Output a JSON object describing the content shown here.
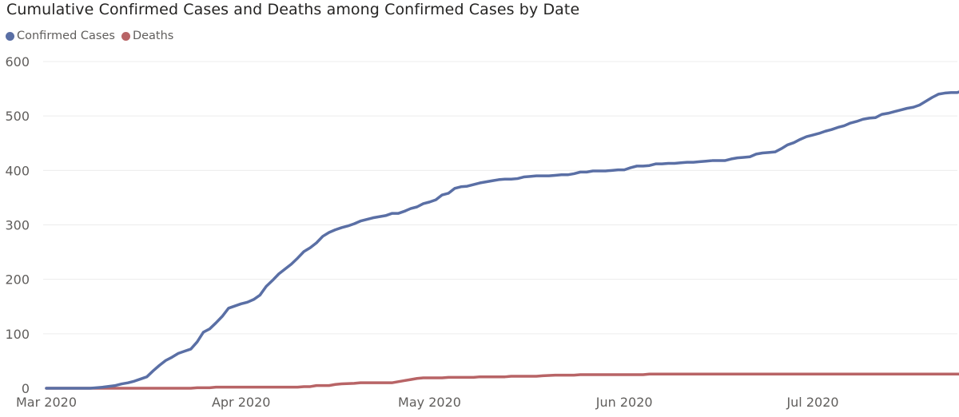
{
  "title": "Cumulative Confirmed Cases and Deaths among Confirmed Cases by Date",
  "legend": [
    {
      "label": "Confirmed Cases",
      "color": "#5a6fa5"
    },
    {
      "label": "Deaths",
      "color": "#b86466"
    }
  ],
  "chart_data": {
    "type": "line",
    "title": "Cumulative Confirmed Cases and Deaths among Confirmed Cases by Date",
    "xlabel": "",
    "ylabel": "",
    "ylim": [
      0,
      600
    ],
    "yticks": [
      0,
      100,
      200,
      300,
      400,
      500,
      600
    ],
    "xticks": [
      {
        "date": "2020-03-01",
        "label": "Mar 2020"
      },
      {
        "date": "2020-04-01",
        "label": "Apr 2020"
      },
      {
        "date": "2020-05-01",
        "label": "May 2020"
      },
      {
        "date": "2020-06-01",
        "label": "Jun 2020"
      },
      {
        "date": "2020-07-01",
        "label": "Jul 2020"
      }
    ],
    "xrange": [
      "2020-03-01",
      "2020-07-21"
    ],
    "grid": true,
    "legend_position": "top-left",
    "series": [
      {
        "name": "Confirmed Cases",
        "color": "#5a6fa5",
        "points": [
          [
            "2020-03-01",
            0
          ],
          [
            "2020-03-05",
            0
          ],
          [
            "2020-03-08",
            0
          ],
          [
            "2020-03-10",
            2
          ],
          [
            "2020-03-12",
            5
          ],
          [
            "2020-03-13",
            8
          ],
          [
            "2020-03-14",
            10
          ],
          [
            "2020-03-15",
            13
          ],
          [
            "2020-03-16",
            17
          ],
          [
            "2020-03-17",
            21
          ],
          [
            "2020-03-18",
            32
          ],
          [
            "2020-03-19",
            42
          ],
          [
            "2020-03-20",
            51
          ],
          [
            "2020-03-21",
            57
          ],
          [
            "2020-03-22",
            64
          ],
          [
            "2020-03-23",
            68
          ],
          [
            "2020-03-24",
            72
          ],
          [
            "2020-03-25",
            85
          ],
          [
            "2020-03-26",
            103
          ],
          [
            "2020-03-27",
            109
          ],
          [
            "2020-03-28",
            120
          ],
          [
            "2020-03-29",
            132
          ],
          [
            "2020-03-30",
            147
          ],
          [
            "2020-03-31",
            151
          ],
          [
            "2020-04-01",
            155
          ],
          [
            "2020-04-02",
            158
          ],
          [
            "2020-04-03",
            163
          ],
          [
            "2020-04-04",
            171
          ],
          [
            "2020-04-05",
            187
          ],
          [
            "2020-04-06",
            198
          ],
          [
            "2020-04-07",
            210
          ],
          [
            "2020-04-08",
            219
          ],
          [
            "2020-04-09",
            228
          ],
          [
            "2020-04-10",
            239
          ],
          [
            "2020-04-11",
            251
          ],
          [
            "2020-04-12",
            258
          ],
          [
            "2020-04-13",
            267
          ],
          [
            "2020-04-14",
            279
          ],
          [
            "2020-04-15",
            286
          ],
          [
            "2020-04-16",
            291
          ],
          [
            "2020-04-17",
            295
          ],
          [
            "2020-04-18",
            298
          ],
          [
            "2020-04-19",
            302
          ],
          [
            "2020-04-20",
            307
          ],
          [
            "2020-04-21",
            310
          ],
          [
            "2020-04-22",
            313
          ],
          [
            "2020-04-23",
            315
          ],
          [
            "2020-04-24",
            317
          ],
          [
            "2020-04-25",
            321
          ],
          [
            "2020-04-26",
            321
          ],
          [
            "2020-04-27",
            325
          ],
          [
            "2020-04-28",
            330
          ],
          [
            "2020-04-29",
            333
          ],
          [
            "2020-04-30",
            339
          ],
          [
            "2020-05-01",
            342
          ],
          [
            "2020-05-02",
            346
          ],
          [
            "2020-05-03",
            355
          ],
          [
            "2020-05-04",
            358
          ],
          [
            "2020-05-05",
            367
          ],
          [
            "2020-05-06",
            370
          ],
          [
            "2020-05-07",
            371
          ],
          [
            "2020-05-08",
            374
          ],
          [
            "2020-05-09",
            377
          ],
          [
            "2020-05-10",
            379
          ],
          [
            "2020-05-11",
            381
          ],
          [
            "2020-05-12",
            383
          ],
          [
            "2020-05-13",
            384
          ],
          [
            "2020-05-14",
            384
          ],
          [
            "2020-05-15",
            385
          ],
          [
            "2020-05-16",
            388
          ],
          [
            "2020-05-17",
            389
          ],
          [
            "2020-05-18",
            390
          ],
          [
            "2020-05-19",
            390
          ],
          [
            "2020-05-20",
            390
          ],
          [
            "2020-05-21",
            391
          ],
          [
            "2020-05-22",
            392
          ],
          [
            "2020-05-23",
            392
          ],
          [
            "2020-05-24",
            394
          ],
          [
            "2020-05-25",
            397
          ],
          [
            "2020-05-26",
            397
          ],
          [
            "2020-05-27",
            399
          ],
          [
            "2020-05-28",
            399
          ],
          [
            "2020-05-29",
            399
          ],
          [
            "2020-05-30",
            400
          ],
          [
            "2020-05-31",
            401
          ],
          [
            "2020-06-01",
            401
          ],
          [
            "2020-06-02",
            405
          ],
          [
            "2020-06-03",
            408
          ],
          [
            "2020-06-04",
            408
          ],
          [
            "2020-06-05",
            409
          ],
          [
            "2020-06-06",
            412
          ],
          [
            "2020-06-07",
            412
          ],
          [
            "2020-06-08",
            413
          ],
          [
            "2020-06-09",
            413
          ],
          [
            "2020-06-10",
            414
          ],
          [
            "2020-06-11",
            415
          ],
          [
            "2020-06-12",
            415
          ],
          [
            "2020-06-13",
            416
          ],
          [
            "2020-06-14",
            417
          ],
          [
            "2020-06-15",
            418
          ],
          [
            "2020-06-16",
            418
          ],
          [
            "2020-06-17",
            418
          ],
          [
            "2020-06-18",
            421
          ],
          [
            "2020-06-19",
            423
          ],
          [
            "2020-06-20",
            424
          ],
          [
            "2020-06-21",
            425
          ],
          [
            "2020-06-22",
            430
          ],
          [
            "2020-06-23",
            432
          ],
          [
            "2020-06-24",
            433
          ],
          [
            "2020-06-25",
            434
          ],
          [
            "2020-06-26",
            440
          ],
          [
            "2020-06-27",
            447
          ],
          [
            "2020-06-28",
            451
          ],
          [
            "2020-06-29",
            457
          ],
          [
            "2020-06-30",
            462
          ],
          [
            "2020-07-01",
            465
          ],
          [
            "2020-07-02",
            468
          ],
          [
            "2020-07-03",
            472
          ],
          [
            "2020-07-04",
            475
          ],
          [
            "2020-07-05",
            479
          ],
          [
            "2020-07-06",
            482
          ],
          [
            "2020-07-07",
            487
          ],
          [
            "2020-07-08",
            490
          ],
          [
            "2020-07-09",
            494
          ],
          [
            "2020-07-10",
            496
          ],
          [
            "2020-07-11",
            497
          ],
          [
            "2020-07-12",
            503
          ],
          [
            "2020-07-13",
            505
          ],
          [
            "2020-07-14",
            508
          ],
          [
            "2020-07-15",
            511
          ],
          [
            "2020-07-16",
            514
          ],
          [
            "2020-07-17",
            516
          ],
          [
            "2020-07-18",
            520
          ],
          [
            "2020-07-19",
            527
          ],
          [
            "2020-07-20",
            534
          ],
          [
            "2020-07-21",
            540
          ],
          [
            "2020-07-22",
            542
          ],
          [
            "2020-07-23",
            543
          ],
          [
            "2020-07-24",
            543
          ],
          [
            "2020-07-25",
            547
          ],
          [
            "2020-07-26",
            547
          ],
          [
            "2020-07-27",
            547
          ]
        ]
      },
      {
        "name": "Deaths",
        "color": "#b86466",
        "points": [
          [
            "2020-03-01",
            0
          ],
          [
            "2020-03-24",
            0
          ],
          [
            "2020-03-25",
            1
          ],
          [
            "2020-03-27",
            1
          ],
          [
            "2020-03-28",
            2
          ],
          [
            "2020-04-10",
            2
          ],
          [
            "2020-04-11",
            3
          ],
          [
            "2020-04-12",
            3
          ],
          [
            "2020-04-13",
            5
          ],
          [
            "2020-04-15",
            5
          ],
          [
            "2020-04-16",
            7
          ],
          [
            "2020-04-17",
            8
          ],
          [
            "2020-04-19",
            9
          ],
          [
            "2020-04-20",
            10
          ],
          [
            "2020-04-25",
            10
          ],
          [
            "2020-04-26",
            12
          ],
          [
            "2020-04-27",
            14
          ],
          [
            "2020-04-28",
            16
          ],
          [
            "2020-04-29",
            18
          ],
          [
            "2020-04-30",
            19
          ],
          [
            "2020-05-03",
            19
          ],
          [
            "2020-05-04",
            20
          ],
          [
            "2020-05-08",
            20
          ],
          [
            "2020-05-09",
            21
          ],
          [
            "2020-05-13",
            21
          ],
          [
            "2020-05-14",
            22
          ],
          [
            "2020-05-18",
            22
          ],
          [
            "2020-05-19",
            23
          ],
          [
            "2020-05-21",
            24
          ],
          [
            "2020-05-24",
            24
          ],
          [
            "2020-05-25",
            25
          ],
          [
            "2020-06-04",
            25
          ],
          [
            "2020-06-05",
            26
          ],
          [
            "2020-07-27",
            26
          ]
        ]
      }
    ]
  }
}
